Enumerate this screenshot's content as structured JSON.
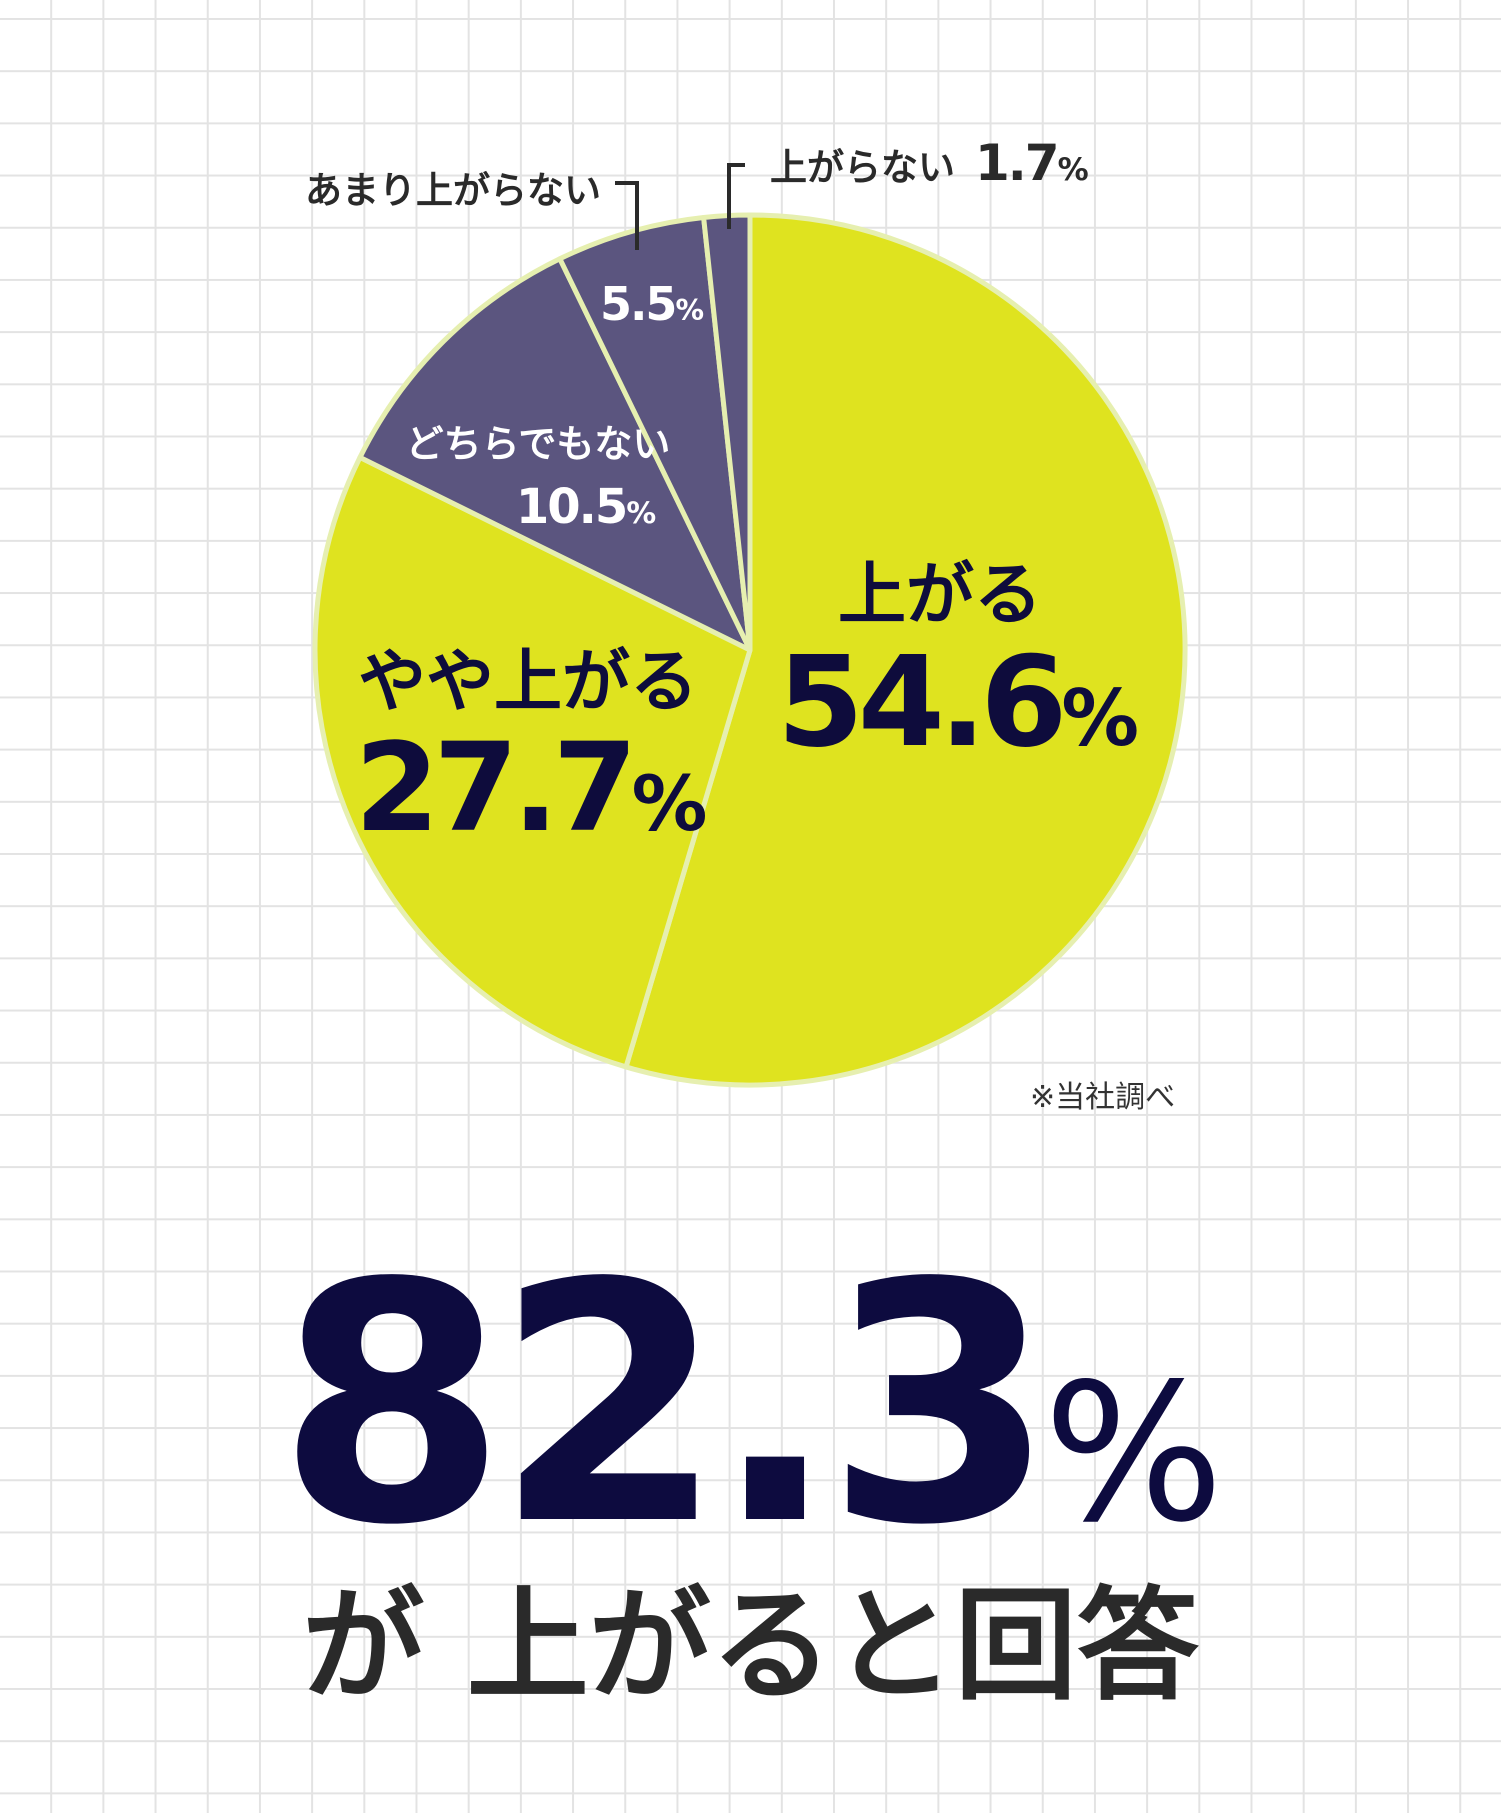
{
  "chart_data": {
    "type": "pie",
    "slices": [
      {
        "label": "上がる",
        "value": 54.6,
        "value_text": "54.6",
        "color": "#dfe31f"
      },
      {
        "label": "やや上がる",
        "value": 27.7,
        "value_text": "27.7",
        "color": "#dfe31f"
      },
      {
        "label": "どちらでもない",
        "value": 10.5,
        "value_text": "10.5",
        "color": "#5b557f"
      },
      {
        "label": "あまり上がらない",
        "value": 5.5,
        "value_text": "5.5",
        "color": "#5b557f"
      },
      {
        "label": "上がらない",
        "value": 1.7,
        "value_text": "1.7",
        "color": "#5b557f"
      }
    ],
    "unit": "%",
    "start": "12 o'clock",
    "direction": "clockwise",
    "separator_color": "#e6efb0",
    "note": "※当社調べ"
  },
  "headline": {
    "value": "82.3",
    "unit": "%",
    "caption": "が 上がると回答"
  },
  "colors": {
    "accent_yellow": "#dfe31f",
    "accent_purple": "#5b557f",
    "text_navy": "#0d0b3f"
  }
}
